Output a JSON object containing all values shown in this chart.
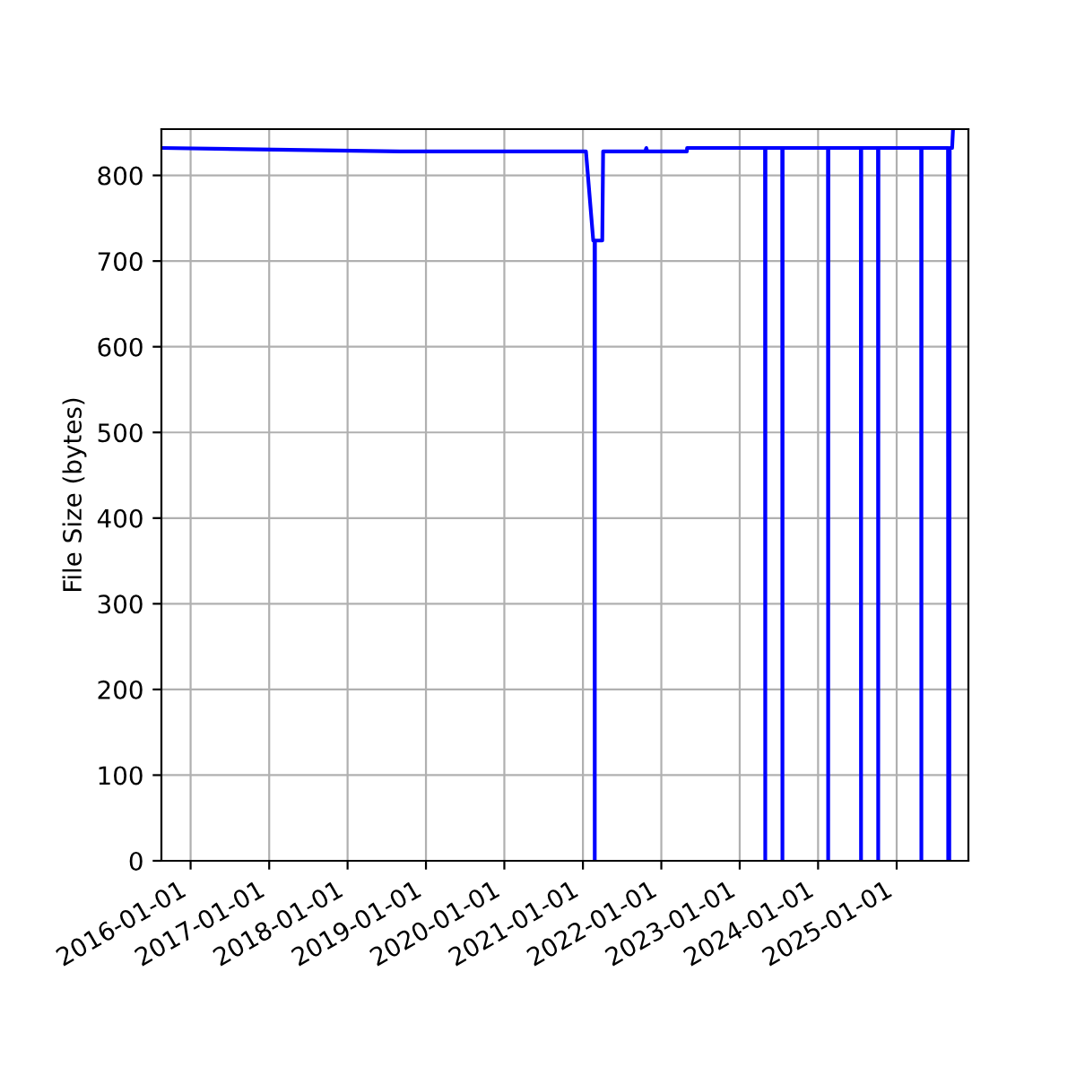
{
  "chart_data": {
    "type": "line",
    "ylabel": "File Size (bytes)",
    "x": [
      "2015-08-18",
      "2018-09-01",
      "2021-01-15",
      "2021-02-18",
      "2021-02-24",
      "2021-02-25",
      "2021-02-26",
      "2021-04-01",
      "2021-04-05",
      "2021-10-18",
      "2021-10-23",
      "2021-10-28",
      "2022-04-30",
      "2022-05-01",
      "2023-04-29",
      "2023-04-30",
      "2023-05-01",
      "2023-07-18",
      "2023-07-19",
      "2023-07-20",
      "2024-02-16",
      "2024-02-17",
      "2024-02-18",
      "2024-07-18",
      "2024-07-19",
      "2024-07-20",
      "2024-10-06",
      "2024-10-07",
      "2024-10-08",
      "2025-04-25",
      "2025-04-26",
      "2025-04-27",
      "2025-08-28",
      "2025-08-29",
      "2025-08-31",
      "2025-09-03",
      "2025-09-05",
      "2025-09-16",
      "2025-09-20"
    ],
    "series": [
      {
        "color": "#0000ff",
        "values": [
          832,
          828,
          828,
          724,
          724,
          0,
          724,
          724,
          828,
          828,
          832,
          828,
          828,
          832,
          832,
          0,
          832,
          832,
          0,
          832,
          832,
          0,
          832,
          832,
          0,
          832,
          832,
          0,
          832,
          832,
          0,
          832,
          832,
          0,
          832,
          0,
          832,
          832,
          852
        ]
      }
    ],
    "xlim": [
      "2015-08-18",
      "2025-12-01"
    ],
    "xticks": [
      "2016-01-01",
      "2017-01-01",
      "2018-01-01",
      "2019-01-01",
      "2020-01-01",
      "2021-01-01",
      "2022-01-01",
      "2023-01-01",
      "2024-01-01",
      "2025-01-01"
    ],
    "ylim": [
      0,
      854
    ],
    "yticks": [
      0,
      100,
      200,
      300,
      400,
      500,
      600,
      700,
      800
    ],
    "grid": true,
    "line_style": "solid",
    "marker": "none"
  }
}
